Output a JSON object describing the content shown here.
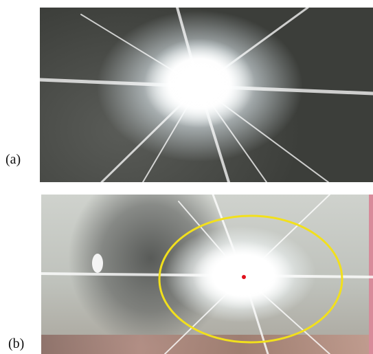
{
  "labels": {
    "a": "(a)",
    "b": "(b)"
  },
  "colors": {
    "detection_ellipse": "#f2e01c",
    "center_dot": "#e0101c"
  }
}
